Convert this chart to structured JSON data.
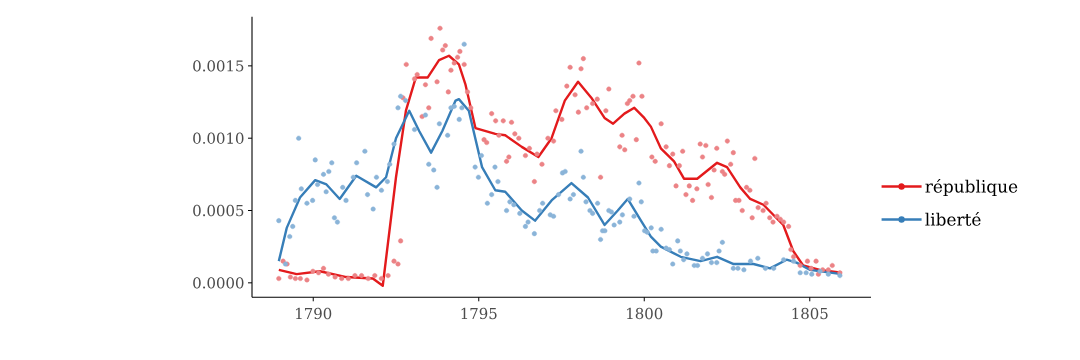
{
  "chart_data": {
    "type": "line",
    "xlim": [
      1788.15,
      1806.85
    ],
    "ylim": [
      -0.0001,
      0.00184
    ],
    "xticks": [
      1790,
      1795,
      1800,
      1805
    ],
    "yticks": [
      {
        "value": 0,
        "label": "0.0000"
      },
      {
        "value": 0.0005,
        "label": "0.0005"
      },
      {
        "value": 0.001,
        "label": "0.0010"
      },
      {
        "value": 0.0015,
        "label": "0.0015"
      }
    ],
    "legend": "right",
    "series": [
      {
        "type": "scatter",
        "marker": "circle",
        "color": "#ec8386",
        "x": [
          1788.96,
          1789.09,
          1789.21,
          1789.31,
          1789.46,
          1789.61,
          1789.81,
          1789.99,
          1790.16,
          1790.31,
          1790.46,
          1790.66,
          1790.86,
          1791.06,
          1791.26,
          1791.46,
          1791.66,
          1791.86,
          1792.06,
          1792.26,
          1792.44,
          1792.56,
          1792.64,
          1792.71,
          1792.81,
          1793.06,
          1793.14,
          1793.29,
          1793.39,
          1793.49,
          1793.56,
          1793.74,
          1793.83,
          1793.91,
          1793.99,
          1794.08,
          1794.16,
          1794.26,
          1794.36,
          1794.43,
          1794.56,
          1794.66,
          1794.76,
          1795.16,
          1795.24,
          1795.39,
          1795.51,
          1795.61,
          1795.74,
          1795.84,
          1795.91,
          1795.99,
          1796.09,
          1796.21,
          1796.41,
          1796.53,
          1796.68,
          1796.76,
          1796.91,
          1797.09,
          1797.26,
          1797.33,
          1797.51,
          1797.66,
          1797.76,
          1797.91,
          1798.01,
          1798.09,
          1798.16,
          1798.26,
          1798.44,
          1798.58,
          1798.68,
          1798.84,
          1798.93,
          1799.26,
          1799.33,
          1799.41,
          1799.49,
          1799.56,
          1799.66,
          1799.76,
          1799.84,
          1799.93,
          1800.23,
          1800.33,
          1800.51,
          1800.66,
          1800.76,
          1800.86,
          1800.96,
          1801.06,
          1801.16,
          1801.26,
          1801.36,
          1801.46,
          1801.59,
          1801.69,
          1801.76,
          1801.86,
          1801.93,
          1802.03,
          1802.11,
          1802.19,
          1802.36,
          1802.43,
          1802.51,
          1802.61,
          1802.69,
          1802.76,
          1802.86,
          1802.96,
          1803.09,
          1803.19,
          1803.26,
          1803.34,
          1803.44,
          1803.59,
          1803.68,
          1803.79,
          1803.89,
          1804.01,
          1804.11,
          1804.21,
          1804.36,
          1804.43,
          1804.51,
          1804.71,
          1804.93,
          1805.04,
          1805.19,
          1805.26,
          1805.39,
          1805.56,
          1805.68,
          1805.91
        ],
        "values": [
          3e-05,
          0.00015,
          0.00013,
          4e-05,
          3e-05,
          3e-05,
          2e-05,
          8e-05,
          7e-05,
          0.0001,
          6e-05,
          4e-05,
          3e-05,
          3e-05,
          5e-05,
          5e-05,
          3e-05,
          5e-05,
          3e-05,
          5e-05,
          0.00015,
          0.00013,
          0.00029,
          0.00128,
          0.00151,
          0.00141,
          0.00144,
          0.00115,
          0.00137,
          0.00121,
          0.00169,
          0.00139,
          0.00176,
          0.00161,
          0.00164,
          0.00132,
          0.00147,
          0.00152,
          0.00156,
          0.0016,
          0.00151,
          0.00132,
          0.00121,
          0.00099,
          0.00097,
          0.00117,
          0.00112,
          0.00102,
          0.00112,
          0.00084,
          0.00087,
          0.00111,
          0.00103,
          0.001,
          0.00088,
          0.00093,
          0.0007,
          0.00089,
          0.00082,
          0.001,
          0.00098,
          0.00119,
          0.00113,
          0.00136,
          0.00149,
          0.0013,
          0.00118,
          0.00148,
          0.00155,
          0.00121,
          0.00124,
          0.00127,
          0.00073,
          0.00119,
          0.00134,
          0.00094,
          0.00102,
          0.00092,
          0.00124,
          0.00126,
          0.00129,
          0.00099,
          0.00152,
          0.00129,
          0.00087,
          0.00084,
          0.0011,
          0.00094,
          0.00081,
          0.00089,
          0.00067,
          0.00081,
          0.00091,
          0.00061,
          0.00067,
          0.00057,
          0.00065,
          0.00096,
          0.00087,
          0.00095,
          0.00068,
          0.00059,
          0.00078,
          0.00093,
          0.00077,
          0.00075,
          0.00098,
          0.00082,
          0.0009,
          0.00057,
          0.00057,
          0.0005,
          0.00066,
          0.00064,
          0.00045,
          0.00086,
          0.00052,
          0.0005,
          0.00055,
          0.00045,
          0.00042,
          0.00046,
          0.00044,
          0.00042,
          0.00039,
          0.00023,
          0.00018,
          0.00012,
          0.00015,
          0.0001,
          0.00015,
          6e-05,
          9e-05,
          9e-05,
          0.00012,
          7e-05
        ]
      },
      {
        "type": "scatter",
        "marker": "circle",
        "color": "#8ab4d8",
        "x": [
          1788.96,
          1789.16,
          1789.29,
          1789.38,
          1789.46,
          1789.56,
          1789.64,
          1789.81,
          1789.98,
          1790.06,
          1790.13,
          1790.31,
          1790.39,
          1790.47,
          1790.56,
          1790.64,
          1790.73,
          1790.89,
          1790.99,
          1791.21,
          1791.31,
          1791.56,
          1791.64,
          1791.81,
          1791.91,
          1792.06,
          1792.24,
          1792.31,
          1792.44,
          1792.56,
          1792.64,
          1792.79,
          1793.06,
          1793.39,
          1793.49,
          1793.64,
          1793.74,
          1793.81,
          1794.06,
          1794.16,
          1794.26,
          1794.41,
          1794.49,
          1794.56,
          1794.89,
          1794.99,
          1795.08,
          1795.26,
          1795.39,
          1795.49,
          1795.58,
          1795.84,
          1795.94,
          1796.06,
          1796.24,
          1796.41,
          1796.49,
          1796.68,
          1796.84,
          1796.93,
          1797.16,
          1797.26,
          1797.41,
          1797.53,
          1797.61,
          1797.76,
          1797.86,
          1798.09,
          1798.16,
          1798.24,
          1798.36,
          1798.44,
          1798.59,
          1798.68,
          1798.74,
          1798.81,
          1798.93,
          1799.01,
          1799.09,
          1799.26,
          1799.34,
          1799.56,
          1799.69,
          1799.84,
          1799.91,
          1800.01,
          1800.09,
          1800.21,
          1800.26,
          1800.36,
          1800.51,
          1800.66,
          1800.76,
          1800.86,
          1801.01,
          1801.09,
          1801.19,
          1801.29,
          1801.51,
          1801.61,
          1801.76,
          1801.91,
          1802.03,
          1802.19,
          1802.26,
          1802.36,
          1802.69,
          1802.83,
          1803.01,
          1803.21,
          1803.43,
          1803.66,
          1803.91,
          1804.21,
          1804.51,
          1804.71,
          1804.89,
          1805.06,
          1805.31,
          1805.56,
          1805.91
        ],
        "values": [
          0.00043,
          0.00013,
          0.00032,
          0.00039,
          0.00057,
          0.001,
          0.00065,
          0.00055,
          0.00057,
          0.00085,
          0.00068,
          0.00075,
          0.00063,
          0.00077,
          0.00083,
          0.00045,
          0.00042,
          0.00066,
          0.00057,
          0.00073,
          0.00083,
          0.00091,
          0.00061,
          0.00051,
          0.00073,
          0.00064,
          0.0007,
          0.00082,
          0.00096,
          0.00121,
          0.00129,
          0.00126,
          0.00106,
          0.00116,
          0.00082,
          0.00078,
          0.00066,
          0.0011,
          0.00102,
          0.00121,
          0.00122,
          0.00113,
          0.00121,
          0.00165,
          0.0008,
          0.00073,
          0.00088,
          0.00055,
          0.00061,
          0.0008,
          0.0007,
          0.0005,
          0.00056,
          0.00054,
          0.00048,
          0.00039,
          0.00042,
          0.00034,
          0.0005,
          0.00055,
          0.00047,
          0.00046,
          0.00061,
          0.00076,
          0.00077,
          0.00058,
          0.00061,
          0.00091,
          0.00073,
          0.00056,
          0.0005,
          0.00048,
          0.00055,
          0.0003,
          0.00036,
          0.00036,
          0.0005,
          0.00049,
          0.0004,
          0.00042,
          0.00047,
          0.00058,
          0.00046,
          0.00069,
          0.00056,
          0.00036,
          0.00035,
          0.00038,
          0.00022,
          0.00022,
          0.00037,
          0.00024,
          0.00023,
          0.00013,
          0.00029,
          0.00022,
          0.00016,
          0.0002,
          0.00012,
          0.00012,
          0.00017,
          0.0002,
          0.00014,
          0.00014,
          0.00022,
          0.00028,
          0.0001,
          0.0001,
          9e-05,
          0.00015,
          0.00017,
          0.0001,
          0.0001,
          0.00016,
          0.00015,
          7e-05,
          7e-05,
          6e-05,
          8e-05,
          6e-05,
          5e-05
        ]
      },
      {
        "name": "république",
        "marker": "none",
        "line_style": "solid",
        "color": "#e31a1c",
        "x": [
          1788.96,
          1789.5,
          1790.2,
          1791,
          1791.8,
          1792.1,
          1792.5,
          1792.8,
          1793.1,
          1793.46,
          1793.8,
          1794.1,
          1794.4,
          1794.6,
          1794.9,
          1795.5,
          1795.8,
          1796.3,
          1796.8,
          1797.2,
          1797.6,
          1798.0,
          1798.4,
          1798.8,
          1799.06,
          1799.4,
          1799.7,
          1800.0,
          1800.2,
          1800.5,
          1800.9,
          1801.2,
          1801.6,
          1802.2,
          1802.5,
          1802.9,
          1803.2,
          1803.6,
          1804.2,
          1804.5,
          1804.8,
          1805.3,
          1805.96
        ],
        "values": [
          9e-05,
          6e-05,
          8e-05,
          4e-05,
          3e-05,
          -2e-05,
          0.00073,
          0.00119,
          0.00142,
          0.00142,
          0.00154,
          0.00157,
          0.00151,
          0.00137,
          0.00107,
          0.00103,
          0.00102,
          0.00094,
          0.00087,
          0.001,
          0.00126,
          0.00139,
          0.00128,
          0.00114,
          0.0011,
          0.00117,
          0.00121,
          0.00114,
          0.00108,
          0.00093,
          0.00084,
          0.00072,
          0.00072,
          0.00083,
          0.0008,
          0.00066,
          0.00058,
          0.00054,
          0.0004,
          0.00022,
          0.00012,
          9e-05,
          7e-05
        ]
      },
      {
        "name": "liberté",
        "marker": "none",
        "line_style": "solid",
        "color": "#377eb8",
        "x": [
          1788.96,
          1789.2,
          1789.6,
          1790.06,
          1790.4,
          1790.8,
          1791.3,
          1791.9,
          1792.2,
          1792.5,
          1792.9,
          1793.2,
          1793.56,
          1793.9,
          1794.3,
          1794.4,
          1794.7,
          1795.1,
          1795.5,
          1795.8,
          1796.3,
          1796.7,
          1797.2,
          1797.8,
          1798.3,
          1798.8,
          1799.2,
          1799.5,
          1799.9,
          1800.2,
          1800.5,
          1801.1,
          1801.7,
          1802.2,
          1802.7,
          1803.3,
          1803.8,
          1804.3,
          1804.6,
          1805.0,
          1805.96
        ],
        "values": [
          0.00015,
          0.00038,
          0.00059,
          0.00071,
          0.00068,
          0.00058,
          0.00074,
          0.00066,
          0.00073,
          0.001,
          0.00119,
          0.00105,
          0.0009,
          0.00105,
          0.00126,
          0.00127,
          0.00119,
          0.0008,
          0.00064,
          0.00063,
          0.0005,
          0.00043,
          0.00057,
          0.00069,
          0.00059,
          0.0004,
          0.0005,
          0.00058,
          0.00043,
          0.00032,
          0.00025,
          0.00018,
          0.00015,
          0.00018,
          0.00013,
          0.00013,
          0.0001,
          0.00016,
          0.00014,
          9e-05,
          6e-05
        ]
      }
    ]
  }
}
